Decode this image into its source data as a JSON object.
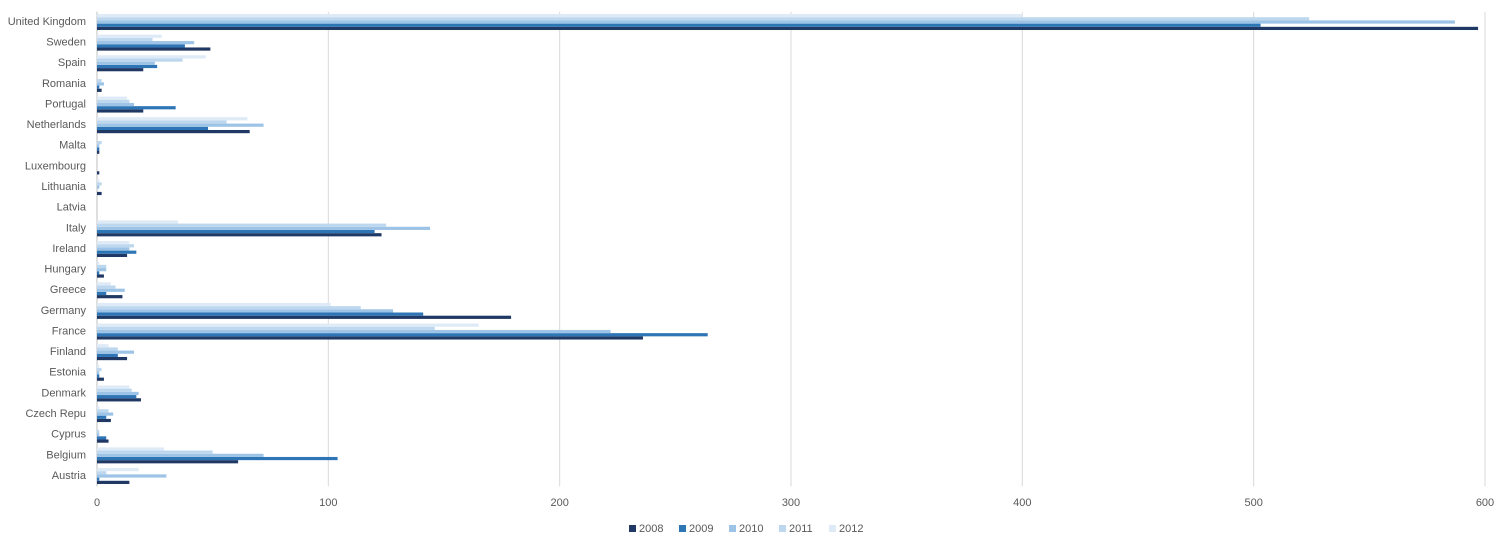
{
  "chart_data": {
    "type": "hbar",
    "categories": [
      "Austria",
      "Belgium",
      "Cyprus",
      "Czech Repu",
      "Denmark",
      "Estonia",
      "Finland",
      "France",
      "Germany",
      "Greece",
      "Hungary",
      "Ireland",
      "Italy",
      "Latvia",
      "Lithuania",
      "Luxembourg",
      "Malta",
      "Netherlands",
      "Portugal",
      "Romania",
      "Spain",
      "Sweden",
      "United Kingdom"
    ],
    "series": [
      {
        "name": "2008",
        "color": "#203864",
        "values": [
          14,
          61,
          5,
          6,
          19,
          3,
          13,
          236,
          179,
          11,
          3,
          13,
          123,
          0,
          2,
          1,
          1,
          66,
          20,
          2,
          20,
          49,
          597
        ]
      },
      {
        "name": "2009",
        "color": "#2e75b6",
        "values": [
          1,
          104,
          4,
          4,
          17,
          1,
          9,
          264,
          141,
          4,
          1,
          17,
          120,
          0,
          0,
          0,
          1,
          48,
          34,
          1,
          26,
          38,
          503
        ]
      },
      {
        "name": "2010",
        "color": "#9dc3e6",
        "values": [
          30,
          72,
          1,
          7,
          18,
          1,
          16,
          222,
          128,
          12,
          4,
          14,
          144,
          0,
          1,
          0,
          1,
          72,
          16,
          3,
          25,
          42,
          587
        ]
      },
      {
        "name": "2011",
        "color": "#bdd7ee",
        "values": [
          4,
          50,
          1,
          5,
          15,
          2,
          9,
          146,
          114,
          8,
          4,
          16,
          125,
          0,
          2,
          0,
          2,
          56,
          14,
          2,
          37,
          24,
          524
        ]
      },
      {
        "name": "2012",
        "color": "#deebf7",
        "values": [
          18,
          29,
          0,
          1,
          14,
          1,
          5,
          165,
          101,
          6,
          1,
          14,
          35,
          0,
          1,
          0,
          0,
          65,
          13,
          0,
          47,
          28,
          400
        ]
      }
    ],
    "xlim": [
      0,
      600
    ],
    "xticks": [
      0,
      100,
      200,
      300,
      400,
      500,
      600
    ],
    "grid": true,
    "legend": "bottom"
  }
}
